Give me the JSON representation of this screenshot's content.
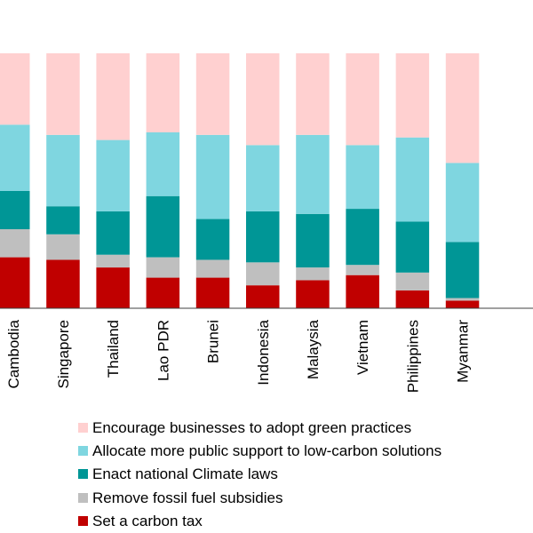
{
  "chart_data": {
    "type": "bar",
    "stacked": true,
    "orientation": "vertical",
    "unit": "percent",
    "title": "",
    "xlabel": "",
    "ylabel": "",
    "ylim": [
      0,
      100
    ],
    "grid": false,
    "legend_position": "bottom",
    "categories": [
      "Cambodia",
      "Singapore",
      "Thailand",
      "Lao PDR",
      "Brunei",
      "Indonesia",
      "Malaysia",
      "Vietnam",
      "Philippines",
      "Myanmar"
    ],
    "series": [
      {
        "name": "Set a carbon tax",
        "color": "#c00000",
        "values": [
          20,
          19,
          16,
          12,
          12,
          9,
          11,
          13,
          7,
          3
        ]
      },
      {
        "name": "Remove fossil fuel subsidies",
        "color": "#bfbfbf",
        "values": [
          11,
          10,
          5,
          8,
          7,
          9,
          5,
          4,
          7,
          1
        ]
      },
      {
        "name": "Enact national Climate laws",
        "color": "#009696",
        "values": [
          15,
          11,
          17,
          24,
          16,
          20,
          21,
          22,
          20,
          22
        ]
      },
      {
        "name": "Allocate more public support to low-carbon solutions",
        "color": "#7fd6e0",
        "values": [
          26,
          28,
          28,
          25,
          33,
          26,
          31,
          25,
          33,
          31
        ]
      },
      {
        "name": "Encourage businesses to adopt green practices",
        "color": "#ffd0d0",
        "values": [
          28,
          32,
          34,
          31,
          32,
          36,
          32,
          36,
          33,
          43
        ]
      }
    ]
  },
  "legend": {
    "items": [
      {
        "label": "Encourage businesses to adopt green practices",
        "color": "#ffd0d0"
      },
      {
        "label": "Allocate more public support to low-carbon solutions",
        "color": "#7fd6e0"
      },
      {
        "label": "Enact national Climate laws",
        "color": "#009696"
      },
      {
        "label": "Remove fossil fuel subsidies",
        "color": "#bfbfbf"
      },
      {
        "label": "Set a carbon tax",
        "color": "#c00000"
      }
    ]
  },
  "colors": {
    "axis": "#404040",
    "text": "#000000"
  }
}
